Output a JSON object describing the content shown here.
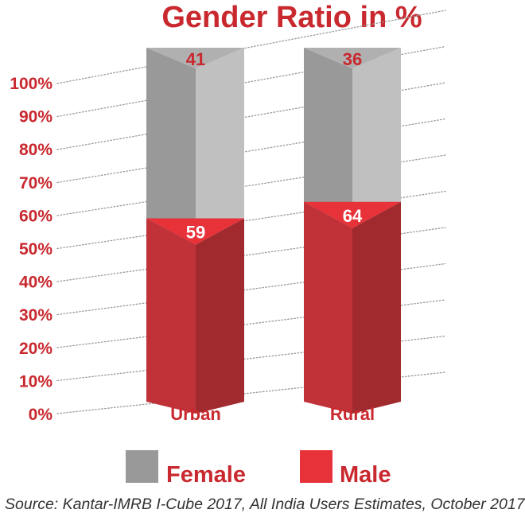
{
  "chart_data": {
    "type": "bar",
    "stacked": true,
    "title": "Gender Ratio in %",
    "categories": [
      "Urban",
      "Rural"
    ],
    "series": [
      {
        "name": "Male",
        "values": [
          59,
          64
        ]
      },
      {
        "name": "Female",
        "values": [
          41,
          36
        ]
      }
    ],
    "yticks": [
      "0%",
      "10%",
      "20%",
      "30%",
      "40%",
      "50%",
      "60%",
      "70%",
      "80%",
      "90%",
      "100%"
    ],
    "ylim": [
      0,
      100
    ],
    "grid": true,
    "legend": "bottom",
    "colors": {
      "title": "#c8282e",
      "tick": "#c8282e",
      "male_light": "#c03238",
      "male_dark": "#a02a2e",
      "male_cap": "#e8323a",
      "female_dark": "#999999",
      "female_light": "#c0c0c0",
      "female_cap": "#b0b0b0",
      "legend_female": "#999999",
      "legend_male": "#e8323a",
      "grid": "#999999"
    }
  },
  "legend": {
    "female_label": "Female",
    "male_label": "Male"
  },
  "source": "Source: Kantar-IMRB I-Cube 2017, All India Users Estimates, October 2017"
}
